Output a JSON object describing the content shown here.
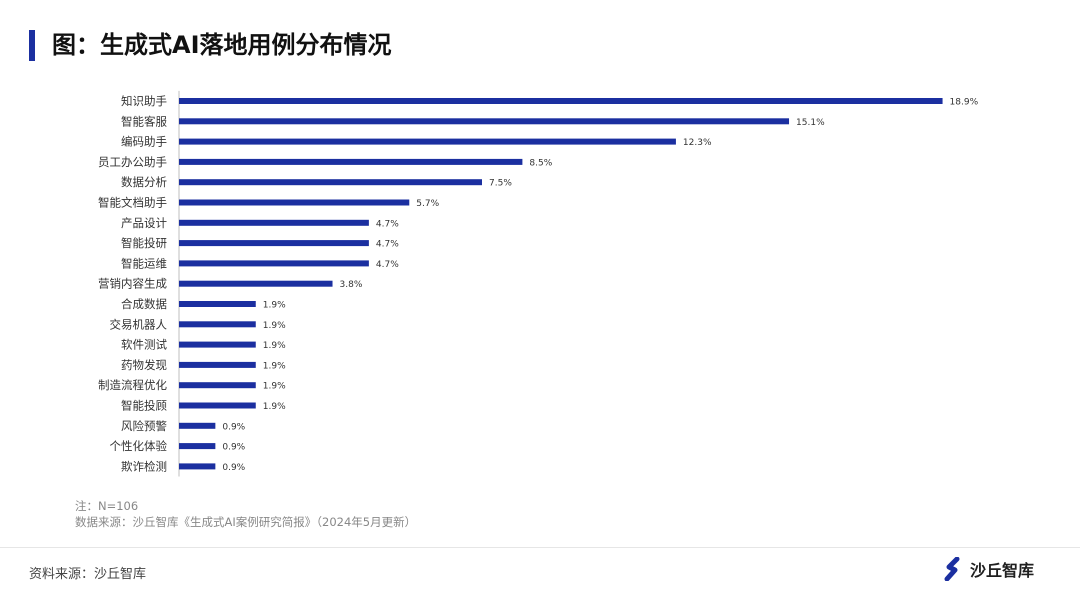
{
  "header": {
    "title": "图：生成式AI落地用例分布情况"
  },
  "colors": {
    "bar": "#1b2fa0",
    "accent": "#1b2fa0"
  },
  "chart_data": {
    "type": "bar",
    "orientation": "horizontal",
    "title": "",
    "xlabel": "",
    "ylabel": "",
    "grid": false,
    "categories": [
      "知识助手",
      "智能客服",
      "编码助手",
      "员工办公助手",
      "数据分析",
      "智能文档助手",
      "产品设计",
      "智能投研",
      "智能运维",
      "营销内容生成",
      "合成数据",
      "交易机器人",
      "软件测试",
      "药物发现",
      "制造流程优化",
      "智能投顾",
      "风险预警",
      "个性化体验",
      "欺诈检测"
    ],
    "values": [
      18.9,
      15.1,
      12.3,
      8.5,
      7.5,
      5.7,
      4.7,
      4.7,
      4.7,
      3.8,
      1.9,
      1.9,
      1.9,
      1.9,
      1.9,
      1.9,
      0.9,
      0.9,
      0.9
    ],
    "value_labels": [
      "18.9%",
      "15.1%",
      "12.3%",
      "8.5%",
      "7.5%",
      "5.7%",
      "4.7%",
      "4.7%",
      "4.7%",
      "3.8%",
      "1.9%",
      "1.9%",
      "1.9%",
      "1.9%",
      "1.9%",
      "1.9%",
      "0.9%",
      "0.9%",
      "0.9%"
    ],
    "xlim": [
      0,
      20
    ]
  },
  "notes": {
    "sample": "注：N=106",
    "data_source": "数据来源：沙丘智库《生成式AI案例研究简报》（2024年5月更新）"
  },
  "footer": {
    "source": "资料来源：沙丘智库",
    "logo_text": "沙丘智库",
    "logo_icon": "brand-s-icon"
  }
}
